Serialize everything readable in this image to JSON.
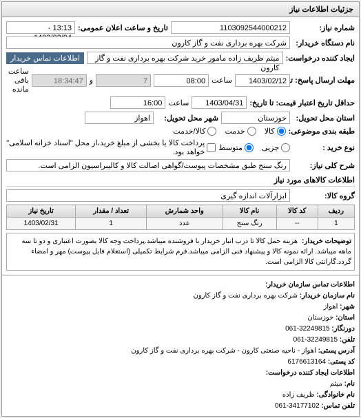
{
  "panel": {
    "title": "جزئیات اطلاعات نیاز"
  },
  "fields": {
    "request_no_label": "شماره نیاز:",
    "request_no": "1103092544000212",
    "public_datetime_label": "تاریخ و ساعت اعلان عمومی:",
    "public_datetime": "13:13 - 1403/02/04",
    "device_name_label": "نام دستگاه خریدار:",
    "device_name": "شرکت بهره برداری نفت و گاز کارون",
    "creator_label": "ایجاد کننده درخواست:",
    "creator": "میثم ظریف زاده مامور خرید شرکت بهره برداری نفت و گاز کارون",
    "buyer_contact_btn": "اطلاعات تماس خریدار",
    "response_deadline_label": "مهلت ارسال پاسخ: تا تاریخ:",
    "response_date": "1403/02/12",
    "response_time_label": "ساعت",
    "response_time": "08:00",
    "remaining_days": "7",
    "remaining_time": "18:34:47",
    "remaining_caption": "ساعت باقی مانده",
    "credit_deadline_label": "حداقل تاریخ اعتبار قیمت: تا تاریخ:",
    "credit_date": "1403/04/31",
    "credit_time_label": "ساعت",
    "credit_time": "16:00",
    "delivery_state_label": "استان محل تحویل:",
    "delivery_state": "خوزستان",
    "delivery_city_label": "شهر محل تحویل:",
    "delivery_city": "اهواز",
    "classification_label": "طبقه بندی موضوعی:",
    "cls_goods": "کالا",
    "cls_service": "خدمت",
    "cls_goods_service": "کالا/خدمت",
    "purchase_type_label": "نوع خرید :",
    "pt_small": "جزیی",
    "pt_medium": "متوسط",
    "purchase_note": "پرداخت کالا یا بخشی از مبلغ خرید،از محل \"اسناد خزانه اسلامی\" خواهد بود.",
    "general_desc_label": "شرح کلی نیاز:",
    "general_desc": "رنگ سنج طبق مشخصات پیوست/گواهی اصالت کالا و کالیبراسیون الزامی است."
  },
  "goods": {
    "section_title": "اطلاعات کالاهای مورد نیاز",
    "group_label": "گروه کالا:",
    "group_value": "ابزارآلات اندازه گیری",
    "columns": [
      "ردیف",
      "کد کالا",
      "نام کالا",
      "واحد شمارش",
      "تعداد / مقدار",
      "تاریخ نیاز"
    ],
    "rows": [
      [
        "1",
        "--",
        "رنگ سنج",
        "عدد",
        "1",
        "1403/02/31"
      ]
    ],
    "desc_label": "توضیحات خریدار:",
    "desc_text": "هزینه حمل کالا تا درب انبار خریدار با فروشنده میباشد.پرداخت وجه کالا بصورت اعتباری و دو تا سه ماهه میباشد. ارائه نمونه کالا و پیشنهاد فنی الزامی میباشد.فرم شرایط تکمیلی (استعلام فایل پیوست) مهر و امضاء گردد.گارانتی کالا الزامی است."
  },
  "contact": {
    "title": "اطلاعات تماس سازمان خریدار:",
    "org_label": "نام سازمان خریدار:",
    "org": "شرکت بهره برداری نفت و گاز کارون",
    "city_label": "شهر:",
    "city": "اهواز",
    "province_label": "استان:",
    "province": "خوزستان",
    "fax_label": "دورنگار:",
    "fax": "32249815-061",
    "phone_label": "تلفن:",
    "phone": "32249815-061",
    "address_label": "آدرس پستی:",
    "address": "اهواز - ناحیه صنعتی کارون - شرکت بهره برداری نفت و گاز کارون",
    "postal_label": "کد پستی:",
    "postal": "6176613164",
    "creator_title": "اطلاعات ایجاد کننده درخواست:",
    "name_label": "نام:",
    "name": "میثم",
    "lastname_label": "نام خانوادگی:",
    "lastname": "ظریف زاده",
    "tel_label": "تلفن تماس:",
    "tel": "34177102-061"
  }
}
